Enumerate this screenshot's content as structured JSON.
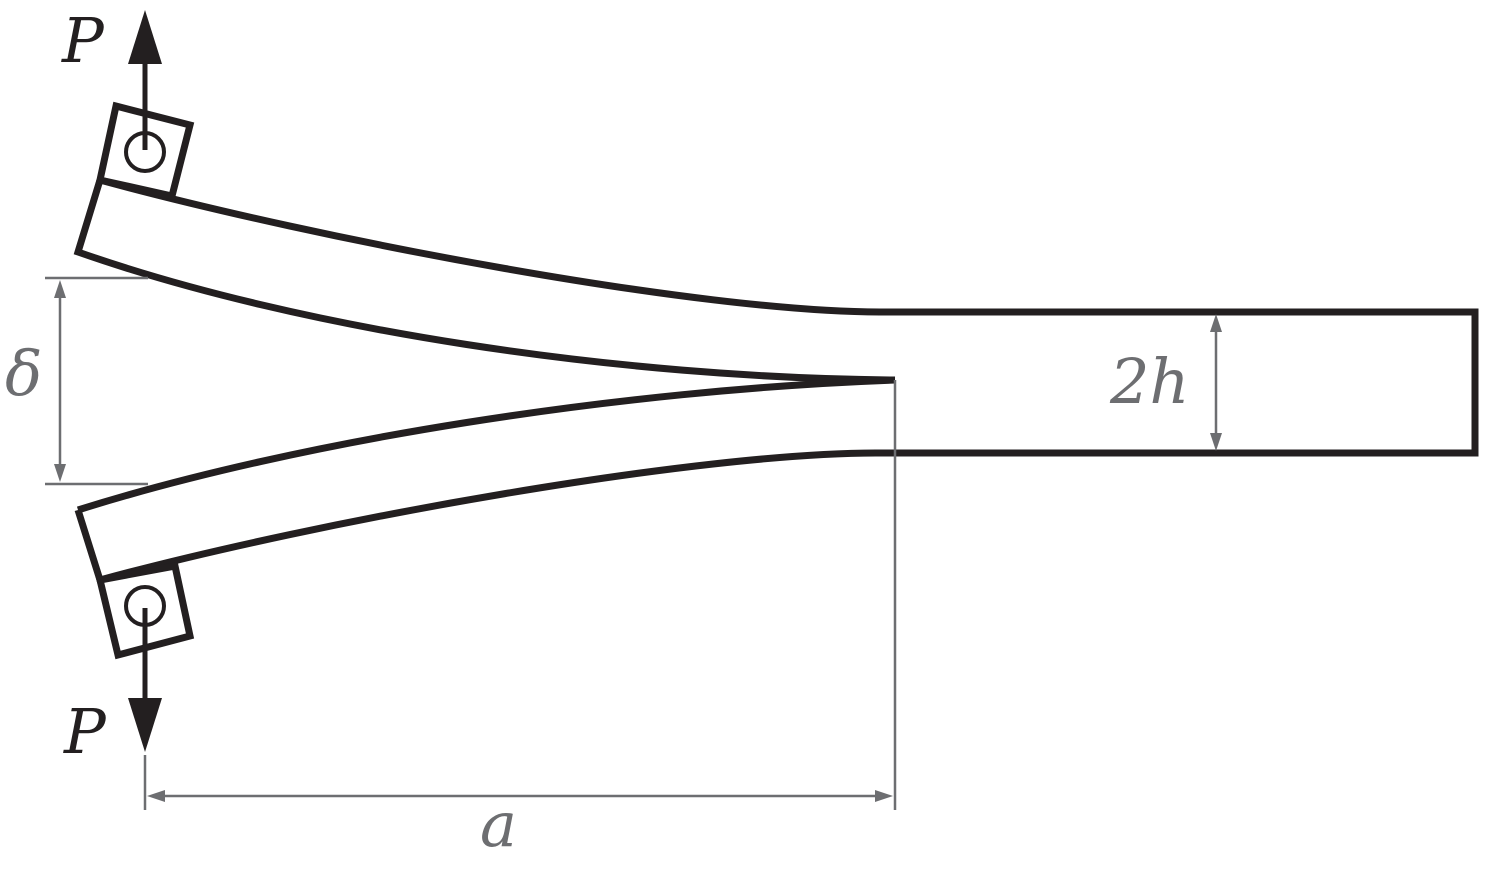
{
  "labels": {
    "load_top": "P",
    "load_bottom": "P",
    "opening": "δ",
    "thickness": "2h",
    "crack_length": "a"
  }
}
